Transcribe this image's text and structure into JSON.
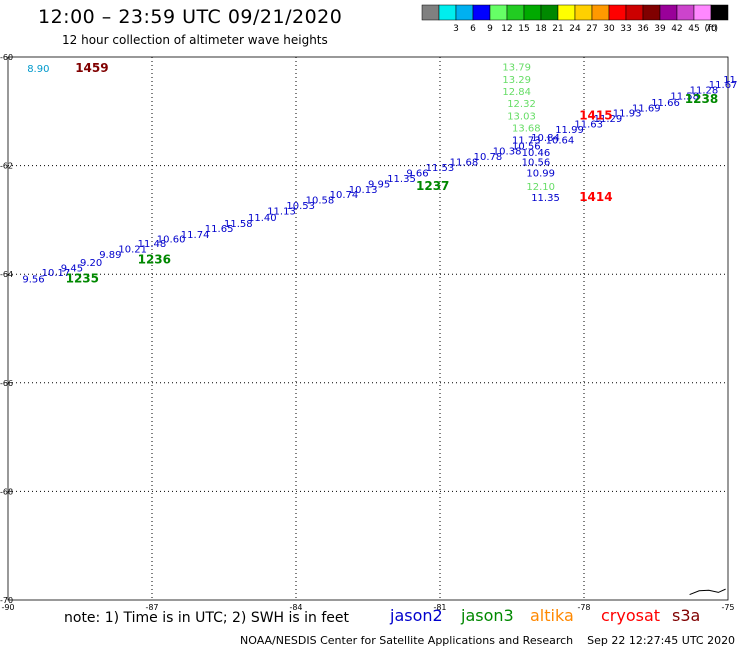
{
  "header": {
    "title": "12:00 – 23:59 UTC 09/21/2020",
    "subtitle": "12 hour collection of altimeter wave heights"
  },
  "legend": {
    "unit": "(ft)",
    "bins": [
      {
        "color": "#808080",
        "label": ""
      },
      {
        "color": "#00eeee",
        "label": "3"
      },
      {
        "color": "#00b0f0",
        "label": "6"
      },
      {
        "color": "#0000ff",
        "label": "9"
      },
      {
        "color": "#66ff66",
        "label": "12"
      },
      {
        "color": "#22cc22",
        "label": "15"
      },
      {
        "color": "#00aa00",
        "label": "18"
      },
      {
        "color": "#008800",
        "label": "21"
      },
      {
        "color": "#ffff00",
        "label": "24"
      },
      {
        "color": "#ffd000",
        "label": "27"
      },
      {
        "color": "#ff9900",
        "label": "30"
      },
      {
        "color": "#ff0000",
        "label": "33"
      },
      {
        "color": "#cc0000",
        "label": "36"
      },
      {
        "color": "#800000",
        "label": "39"
      },
      {
        "color": "#990099",
        "label": "42"
      },
      {
        "color": "#cc44cc",
        "label": "45"
      },
      {
        "color": "#ff88ff",
        "label": "70"
      },
      {
        "color": "#000000",
        "label": ""
      }
    ]
  },
  "axes": {
    "lon_ticks": [
      "-90",
      "-87",
      "-84",
      "-81",
      "-78",
      "-75"
    ],
    "lat_ticks": [
      "-60",
      "-62",
      "-64",
      "-66",
      "-68",
      "-70"
    ]
  },
  "map": {
    "lon_range": [
      -90,
      -75
    ],
    "lat_range": [
      -70,
      -60
    ],
    "colors": {
      "jason2": "#0000cc",
      "jason3": "#008800",
      "jason3_light": "#66dd66",
      "altika": "#ff8800",
      "cryosat": "#ff0000",
      "s3a": "#800000",
      "low": "#0099cc"
    },
    "track_a": {
      "satellite": "jason2",
      "values": [
        "9.56",
        "10.17",
        "9.45",
        "9.20",
        "9.89",
        "10.21",
        "11.48",
        "10.60",
        "11.74",
        "11.65",
        "11.58",
        "11.40",
        "11.13",
        "10.53",
        "10.58",
        "10.74",
        "10.13",
        "9.95",
        "11.35",
        "9.66",
        "11.53",
        "11.68",
        "10.78",
        "10.38",
        "10.56",
        "10.84",
        "11.99",
        "11.63",
        "11.29",
        "11.93",
        "11.69",
        "11.66",
        "11.58",
        "11.28",
        "11.67",
        "11"
      ],
      "lons": [
        -89.7,
        -89.3,
        -88.9,
        -88.5,
        -88.1,
        -87.7,
        -87.3,
        -86.9,
        -86.4,
        -85.9,
        -85.5,
        -85.0,
        -84.6,
        -84.2,
        -83.8,
        -83.3,
        -82.9,
        -82.5,
        -82.1,
        -81.7,
        -81.3,
        -80.8,
        -80.3,
        -79.9,
        -79.5,
        -79.1,
        -78.6,
        -78.2,
        -77.8,
        -77.4,
        -77.0,
        -76.6,
        -76.2,
        -75.8,
        -75.4,
        -75.1
      ],
      "lats": [
        -64.15,
        -64.03,
        -63.95,
        -63.85,
        -63.7,
        -63.6,
        -63.5,
        -63.42,
        -63.33,
        -63.22,
        -63.13,
        -63.02,
        -62.9,
        -62.8,
        -62.7,
        -62.6,
        -62.5,
        -62.4,
        -62.3,
        -62.2,
        -62.1,
        -62.0,
        -61.9,
        -61.8,
        -61.7,
        -61.55,
        -61.4,
        -61.3,
        -61.2,
        -61.1,
        -61.0,
        -60.9,
        -60.78,
        -60.67,
        -60.57,
        -60.48
      ]
    },
    "track_a_times": [
      {
        "label": "1235",
        "lon": -88.8,
        "lat": -64.15
      },
      {
        "label": "1236",
        "lon": -87.3,
        "lat": -63.8
      },
      {
        "label": "1237",
        "lon": -81.5,
        "lat": -62.45
      },
      {
        "label": "1238",
        "lon": -75.9,
        "lat": -60.85
      }
    ],
    "track_b": {
      "satellite": "jason3",
      "values": [
        "13.79",
        "13.29",
        "12.84",
        "12.32",
        "13.03",
        "13.68",
        "11.73",
        "10.64",
        "10.46",
        "10.56",
        "10.99",
        "12.10",
        "11.35"
      ],
      "lons": [
        -79.7,
        -79.7,
        -79.7,
        -79.6,
        -79.6,
        -79.5,
        -79.5,
        -78.8,
        -79.3,
        -79.3,
        -79.2,
        -79.2,
        -79.1
      ],
      "lats": [
        -60.25,
        -60.48,
        -60.7,
        -60.92,
        -61.15,
        -61.37,
        -61.59,
        -61.59,
        -61.82,
        -62.0,
        -62.2,
        -62.45,
        -62.65
      ],
      "light_indices": [
        0,
        1,
        2,
        3,
        4,
        5,
        11
      ]
    },
    "track_b_times": [
      {
        "label": "1415",
        "lon": -78.1,
        "lat": -61.15,
        "satellite": "cryosat"
      },
      {
        "label": "1414",
        "lon": -78.1,
        "lat": -62.65,
        "satellite": "cryosat"
      }
    ],
    "corner_labels": [
      {
        "text": "8.90",
        "lon": -89.6,
        "lat": -60.2,
        "color_key": "low"
      },
      {
        "text": "1459",
        "lon": -88.6,
        "lat": -60.2,
        "color_key": "s3a"
      }
    ]
  },
  "footer": {
    "note": "note: 1) Time is in UTC; 2) SWH is in feet",
    "sat_labels": [
      {
        "text": "jason2",
        "color": "#0000cc"
      },
      {
        "text": "jason3",
        "color": "#008800"
      },
      {
        "text": "altika",
        "color": "#ff8800"
      },
      {
        "text": "cryosat",
        "color": "#ff0000"
      },
      {
        "text": "s3a",
        "color": "#800000"
      }
    ],
    "credit": "NOAA/NESDIS Center for Satellite Applications and Research",
    "timestamp": "Sep 22 12:27:45 UTC 2020"
  }
}
